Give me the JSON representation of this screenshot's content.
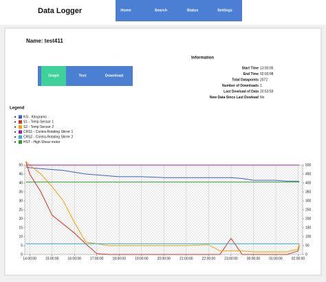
{
  "header": {
    "title": "Data Logger",
    "nav": [
      "Home",
      "Search",
      "Status",
      "Settings"
    ]
  },
  "name": "Name: test411",
  "buttons": [
    "Graph",
    "Text",
    "Download"
  ],
  "information": {
    "title": "Information",
    "rows": [
      [
        "Start Time",
        "13:50:05"
      ],
      [
        "End Time",
        "02:03:08"
      ],
      [
        "Total Datapoints",
        "2072"
      ],
      [
        "Number of Downloads",
        "1"
      ],
      [
        "Last Dowload of Data",
        "20:53:59"
      ],
      [
        "New Data Since Last Dowload",
        "No"
      ]
    ]
  },
  "chart": {
    "type": "line",
    "legend_title": "Legend",
    "x": [
      13.83,
      14,
      14.5,
      15,
      15.5,
      16,
      16.5,
      17,
      17.5,
      18,
      19,
      20,
      21,
      22,
      22.5,
      23,
      23.5,
      24,
      25,
      25.5,
      26,
      26.05
    ],
    "xlim": [
      13.78,
      26.2
    ],
    "xticks": [
      {
        "value": 14,
        "label": "14:00:00"
      },
      {
        "value": 15,
        "label": "15:00:00"
      },
      {
        "value": 16,
        "label": "16:00:00"
      },
      {
        "value": 17,
        "label": "17:00:00"
      },
      {
        "value": 18,
        "label": "18:00:00"
      },
      {
        "value": 19,
        "label": "19:00:00"
      },
      {
        "value": 20,
        "label": "20:00:00"
      },
      {
        "value": 21,
        "label": "21:00:00"
      },
      {
        "value": 22,
        "label": "22:00:00"
      },
      {
        "value": 23,
        "label": "23:00:00"
      },
      {
        "value": 24,
        "label": "00:00:00"
      },
      {
        "value": 25,
        "label": "01:00:00"
      },
      {
        "value": 26,
        "label": "02:00:00"
      }
    ],
    "ylim": [
      0,
      50
    ],
    "yticks": [
      0,
      5,
      10,
      15,
      20,
      25,
      30,
      35,
      40,
      45,
      50
    ],
    "y2lim": [
      0,
      500
    ],
    "y2ticks": [
      0,
      50,
      100,
      150,
      200,
      250,
      300,
      350,
      400,
      450,
      500
    ],
    "grid": true,
    "series": [
      {
        "name": "KG - Kilograms",
        "color": "#3a5fc8",
        "values": [
          49,
          48.5,
          48,
          47.5,
          47,
          46,
          45,
          44.5,
          44,
          43.5,
          43.5,
          43,
          43,
          43,
          43,
          43,
          42.5,
          41.5,
          41.5,
          41,
          41,
          40.5
        ]
      },
      {
        "name": "S1 - Temp Sensor 1",
        "color": "#d2331a",
        "values": [
          52,
          45,
          35,
          22,
          17,
          12,
          6,
          0.5,
          0,
          0,
          0,
          0,
          0,
          0,
          0,
          9,
          0,
          0,
          0,
          0,
          2,
          5
        ]
      },
      {
        "name": "S2 - Temp Sensor 2",
        "color": "#f5a000",
        "values": [
          52,
          50,
          45,
          38,
          30,
          18,
          7,
          6,
          5,
          5,
          5,
          5,
          5,
          5.5,
          2,
          2,
          2,
          1.5,
          1.5,
          1.5,
          3,
          6
        ]
      },
      {
        "name": "CRS1 - Contra-Rotating Stirrer 1",
        "color": "#a020a0",
        "axis": "y2",
        "values": [
          500,
          500,
          500,
          500,
          500,
          500,
          500,
          500,
          500,
          500,
          500,
          500,
          500,
          500,
          500,
          500,
          500,
          500,
          500,
          500,
          500,
          500
        ]
      },
      {
        "name": "CRS2 - Contra-Rotating Stirrer 2",
        "color": "#2ab0e0",
        "values": [
          6,
          6,
          6,
          6,
          6,
          6,
          6,
          6,
          6,
          6,
          6,
          6,
          6,
          6,
          6,
          6,
          6,
          6,
          6,
          6,
          6,
          6
        ]
      },
      {
        "name": "HST - High Shear motor",
        "color": "#2a9a2a",
        "values": [
          40.5,
          40.5,
          40.5,
          40.5,
          40.5,
          40.5,
          40.5,
          40.5,
          40.5,
          40.5,
          40.5,
          40.5,
          40.5,
          40.5,
          40.5,
          40.5,
          40.5,
          40.5,
          40.5,
          40.5,
          40.5,
          40.5
        ]
      }
    ]
  }
}
